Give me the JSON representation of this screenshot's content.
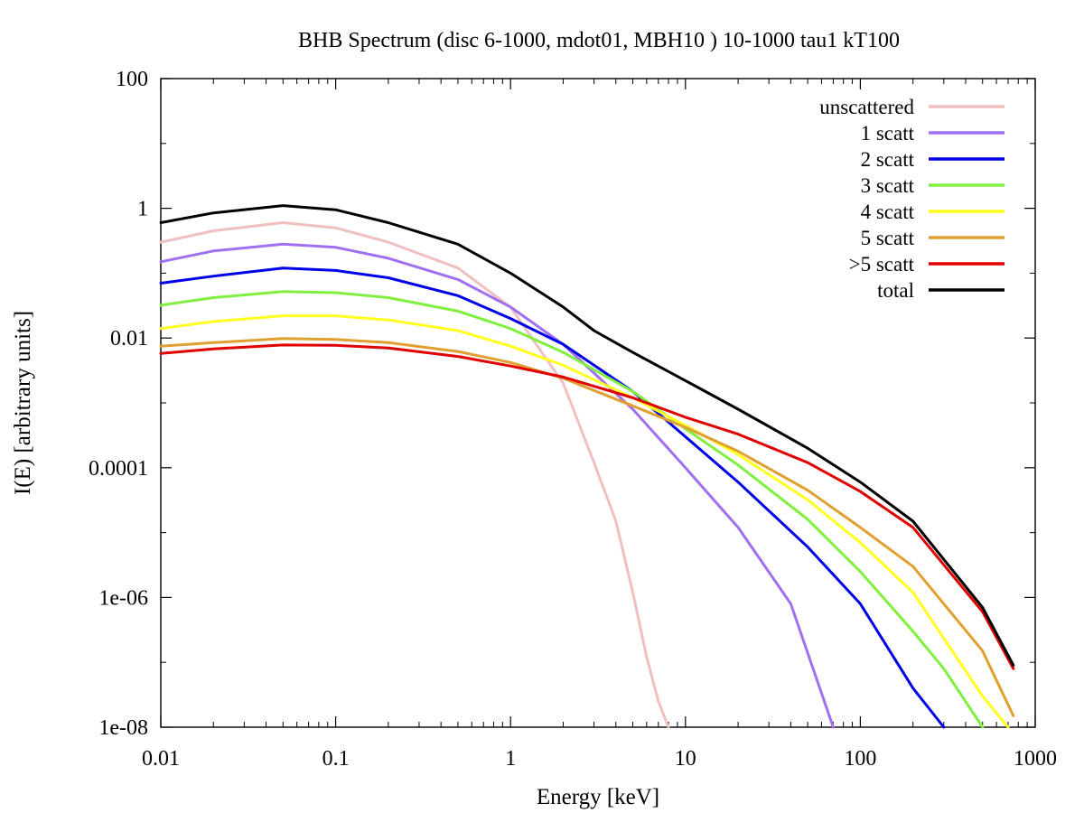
{
  "chart_data": {
    "type": "line",
    "title": "BHB Spectrum (disc 6-1000, mdot01, MBH10 ) 10-1000 tau1 kT100",
    "xlabel": "Energy [keV]",
    "ylabel": "I(E) [arbitrary units]",
    "xscale": "log",
    "yscale": "log",
    "xlim": [
      0.01,
      1000
    ],
    "ylim": [
      1e-08,
      100
    ],
    "grid": false,
    "legend_position": "top-right",
    "x_ticks": [
      {
        "value": 0.01,
        "label": "0.01"
      },
      {
        "value": 0.1,
        "label": "0.1"
      },
      {
        "value": 1,
        "label": "1"
      },
      {
        "value": 10,
        "label": "10"
      },
      {
        "value": 100,
        "label": "100"
      },
      {
        "value": 1000,
        "label": "1000"
      }
    ],
    "y_ticks": [
      {
        "value": 1e-08,
        "label": "1e-08"
      },
      {
        "value": 1e-06,
        "label": "1e-06"
      },
      {
        "value": 0.0001,
        "label": "0.0001"
      },
      {
        "value": 0.01,
        "label": "0.01"
      },
      {
        "value": 1,
        "label": "1"
      },
      {
        "value": 100,
        "label": "100"
      }
    ],
    "series": [
      {
        "name": "unscattered",
        "color": "#f0c0c0",
        "x": [
          0.01,
          0.02,
          0.05,
          0.1,
          0.2,
          0.5,
          1,
          2,
          3,
          4,
          5,
          6,
          7,
          8
        ],
        "y": [
          0.3,
          0.45,
          0.6,
          0.5,
          0.3,
          0.12,
          0.03,
          0.002,
          0.00012,
          1.5e-05,
          1.2e-06,
          1.2e-07,
          2.5e-08,
          1e-08
        ]
      },
      {
        "name": "1 scatt",
        "color": "#a070f0",
        "x": [
          0.01,
          0.02,
          0.05,
          0.1,
          0.2,
          0.5,
          1,
          2,
          5,
          10,
          20,
          40,
          70
        ],
        "y": [
          0.15,
          0.22,
          0.28,
          0.25,
          0.17,
          0.08,
          0.03,
          0.008,
          0.0008,
          0.0001,
          1.2e-05,
          8e-07,
          1e-08
        ]
      },
      {
        "name": "2 scatt",
        "color": "#0000e8",
        "x": [
          0.01,
          0.02,
          0.05,
          0.1,
          0.2,
          0.5,
          1,
          2,
          5,
          10,
          20,
          50,
          100,
          200,
          300
        ],
        "y": [
          0.07,
          0.09,
          0.12,
          0.11,
          0.085,
          0.045,
          0.02,
          0.008,
          0.0015,
          0.0003,
          6e-05,
          6e-06,
          8e-07,
          4e-08,
          1e-08
        ]
      },
      {
        "name": "3 scatt",
        "color": "#80f040",
        "x": [
          0.01,
          0.02,
          0.05,
          0.1,
          0.2,
          0.5,
          1,
          2,
          5,
          10,
          20,
          50,
          100,
          200,
          300,
          500
        ],
        "y": [
          0.032,
          0.042,
          0.052,
          0.05,
          0.042,
          0.026,
          0.014,
          0.006,
          0.0015,
          0.0004,
          0.00011,
          1.6e-05,
          2.5e-06,
          3e-07,
          8e-08,
          1e-08
        ]
      },
      {
        "name": "4 scatt",
        "color": "#ffff20",
        "x": [
          0.01,
          0.02,
          0.05,
          0.1,
          0.2,
          0.5,
          1,
          2,
          5,
          10,
          20,
          50,
          100,
          200,
          500,
          700
        ],
        "y": [
          0.014,
          0.018,
          0.022,
          0.022,
          0.019,
          0.013,
          0.0075,
          0.0038,
          0.0012,
          0.00045,
          0.00016,
          3.2e-05,
          7e-06,
          1.2e-06,
          3e-08,
          1e-08
        ]
      },
      {
        "name": "5 scatt",
        "color": "#e0a030",
        "x": [
          0.01,
          0.02,
          0.05,
          0.1,
          0.2,
          0.5,
          1,
          2,
          5,
          10,
          20,
          50,
          100,
          200,
          500,
          750
        ],
        "y": [
          0.0075,
          0.0085,
          0.0098,
          0.0095,
          0.0085,
          0.0062,
          0.0042,
          0.0024,
          0.0009,
          0.00042,
          0.00018,
          4.5e-05,
          1.2e-05,
          3e-06,
          1.5e-07,
          1.5e-08
        ]
      },
      {
        "name": ">5 scatt",
        "color": "#e00000",
        "x": [
          0.01,
          0.02,
          0.05,
          0.1,
          0.2,
          0.5,
          1,
          2,
          5,
          10,
          20,
          50,
          100,
          200,
          500,
          750
        ],
        "y": [
          0.0058,
          0.0068,
          0.0078,
          0.0077,
          0.007,
          0.0052,
          0.0037,
          0.0025,
          0.0012,
          0.0006,
          0.00033,
          0.00012,
          4.3e-05,
          1.2e-05,
          6e-07,
          8e-08
        ]
      },
      {
        "name": "total",
        "color": "#000000",
        "x": [
          0.01,
          0.02,
          0.05,
          0.1,
          0.2,
          0.5,
          1,
          2,
          3,
          5,
          10,
          20,
          50,
          100,
          200,
          500,
          750
        ],
        "y": [
          0.6,
          0.85,
          1.1,
          0.95,
          0.6,
          0.28,
          0.1,
          0.03,
          0.013,
          0.006,
          0.0022,
          0.0008,
          0.0002,
          6e-05,
          1.5e-05,
          7e-07,
          9e-08
        ]
      }
    ]
  }
}
